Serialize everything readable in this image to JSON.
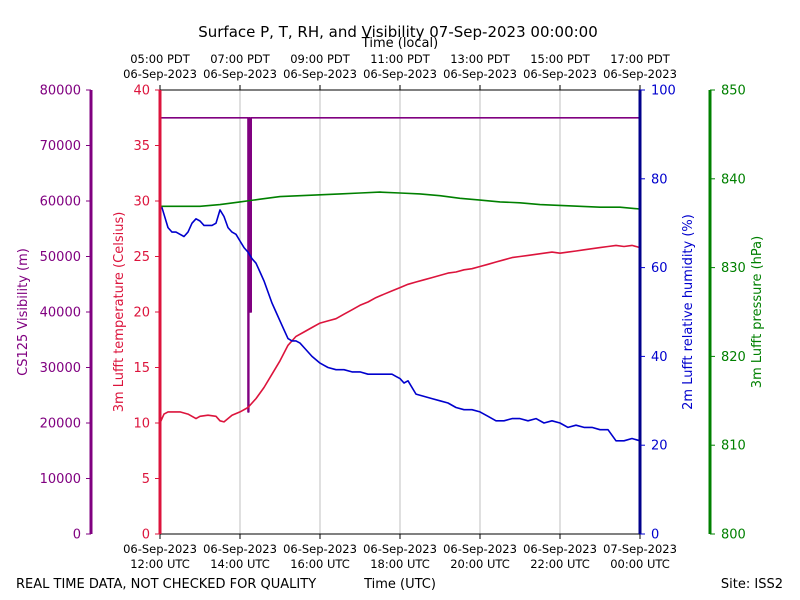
{
  "chart_data": {
    "type": "line",
    "title": "Surface P, T, RH, and Visibility 07-Sep-2023 00:00:00",
    "xlabel_bottom": "Time (UTC)",
    "xlabel_top": "Time (local)",
    "footer_left": "REAL TIME DATA, NOT CHECKED FOR QUALITY",
    "footer_right": "Site: ISS2",
    "xlim_utc_hours": [
      12,
      24
    ],
    "grid": "vertical",
    "x_ticks_bottom": [
      {
        "hour": 12,
        "line1": "06-Sep-2023",
        "line2": "12:00 UTC"
      },
      {
        "hour": 14,
        "line1": "06-Sep-2023",
        "line2": "14:00 UTC"
      },
      {
        "hour": 16,
        "line1": "06-Sep-2023",
        "line2": "16:00 UTC"
      },
      {
        "hour": 18,
        "line1": "06-Sep-2023",
        "line2": "18:00 UTC"
      },
      {
        "hour": 20,
        "line1": "06-Sep-2023",
        "line2": "20:00 UTC"
      },
      {
        "hour": 22,
        "line1": "06-Sep-2023",
        "line2": "22:00 UTC"
      },
      {
        "hour": 24,
        "line1": "07-Sep-2023",
        "line2": "00:00 UTC"
      }
    ],
    "x_ticks_top": [
      {
        "hour": 12,
        "line1": "05:00 PDT",
        "line2": "06-Sep-2023"
      },
      {
        "hour": 14,
        "line1": "07:00 PDT",
        "line2": "06-Sep-2023"
      },
      {
        "hour": 16,
        "line1": "09:00 PDT",
        "line2": "06-Sep-2023"
      },
      {
        "hour": 18,
        "line1": "11:00 PDT",
        "line2": "06-Sep-2023"
      },
      {
        "hour": 20,
        "line1": "13:00 PDT",
        "line2": "06-Sep-2023"
      },
      {
        "hour": 22,
        "line1": "15:00 PDT",
        "line2": "06-Sep-2023"
      },
      {
        "hour": 24,
        "line1": "17:00 PDT",
        "line2": "06-Sep-2023"
      }
    ],
    "axes": {
      "visibility": {
        "label": "CS125 Visibility (m)",
        "ylim": [
          0,
          80000
        ],
        "ticks": [
          0,
          10000,
          20000,
          30000,
          40000,
          50000,
          60000,
          70000,
          80000
        ],
        "color": "#800080"
      },
      "temperature": {
        "label": "3m Lufft temperature (Celsius)",
        "ylim": [
          0,
          40
        ],
        "ticks": [
          0,
          5,
          10,
          15,
          20,
          25,
          30,
          35,
          40
        ],
        "color": "#dc143c"
      },
      "humidity": {
        "label": "2m Lufft relative humidity (%)",
        "ylim": [
          0,
          100
        ],
        "ticks": [
          0,
          20,
          40,
          60,
          80,
          100
        ],
        "color": "#0000cd"
      },
      "pressure": {
        "label": "3m Lufft pressure (hPa)",
        "ylim": [
          800,
          850
        ],
        "ticks": [
          800,
          810,
          820,
          830,
          840,
          850
        ],
        "color": "#008000"
      }
    },
    "series": [
      {
        "axis": "visibility",
        "color": "#800080",
        "x": [
          12.0,
          14.2,
          14.2,
          14.22,
          14.22,
          14.25,
          14.25,
          14.28,
          14.28,
          14.32,
          14.32,
          24.0
        ],
        "y": [
          75000,
          75000,
          22000,
          22000,
          75000,
          75000,
          40000,
          40000,
          75000,
          75000,
          75000,
          75000
        ]
      },
      {
        "axis": "temperature",
        "color": "#dc143c",
        "x": [
          12.0,
          12.1,
          12.2,
          12.5,
          12.7,
          12.9,
          13.0,
          13.2,
          13.4,
          13.5,
          13.6,
          13.8,
          14.0,
          14.2,
          14.4,
          14.6,
          14.8,
          15.0,
          15.2,
          15.4,
          15.6,
          15.8,
          16.0,
          16.2,
          16.4,
          16.6,
          16.8,
          17.0,
          17.2,
          17.4,
          17.6,
          17.8,
          18.0,
          18.2,
          18.4,
          18.6,
          18.8,
          19.0,
          19.2,
          19.4,
          19.6,
          19.8,
          20.0,
          20.2,
          20.4,
          20.6,
          20.8,
          21.0,
          21.2,
          21.4,
          21.6,
          21.8,
          22.0,
          22.2,
          22.4,
          22.6,
          22.8,
          23.0,
          23.2,
          23.4,
          23.6,
          23.8,
          24.0
        ],
        "y": [
          10.0,
          10.8,
          11.0,
          11.0,
          10.8,
          10.4,
          10.6,
          10.7,
          10.6,
          10.2,
          10.1,
          10.7,
          11.0,
          11.4,
          12.2,
          13.2,
          14.4,
          15.6,
          17.0,
          17.8,
          18.2,
          18.6,
          19.0,
          19.2,
          19.4,
          19.8,
          20.2,
          20.6,
          20.9,
          21.3,
          21.6,
          21.9,
          22.2,
          22.5,
          22.7,
          22.9,
          23.1,
          23.3,
          23.5,
          23.6,
          23.8,
          23.9,
          24.1,
          24.3,
          24.5,
          24.7,
          24.9,
          25.0,
          25.1,
          25.2,
          25.3,
          25.4,
          25.3,
          25.4,
          25.5,
          25.6,
          25.7,
          25.8,
          25.9,
          26.0,
          25.9,
          26.0,
          25.8
        ]
      },
      {
        "axis": "humidity",
        "color": "#0000cd",
        "x": [
          12.0,
          12.05,
          12.1,
          12.2,
          12.3,
          12.4,
          12.5,
          12.6,
          12.7,
          12.8,
          12.9,
          13.0,
          13.1,
          13.2,
          13.3,
          13.4,
          13.5,
          13.6,
          13.7,
          13.8,
          13.9,
          14.0,
          14.1,
          14.2,
          14.3,
          14.4,
          14.5,
          14.6,
          14.7,
          14.8,
          14.9,
          15.0,
          15.1,
          15.2,
          15.3,
          15.4,
          15.5,
          15.6,
          15.8,
          16.0,
          16.1,
          16.2,
          16.4,
          16.6,
          16.8,
          17.0,
          17.2,
          17.4,
          17.6,
          17.8,
          17.9,
          18.0,
          18.1,
          18.2,
          18.4,
          18.6,
          18.8,
          19.0,
          19.2,
          19.4,
          19.6,
          19.8,
          20.0,
          20.2,
          20.4,
          20.6,
          20.8,
          21.0,
          21.2,
          21.4,
          21.6,
          21.8,
          22.0,
          22.2,
          22.4,
          22.6,
          22.8,
          23.0,
          23.2,
          23.4,
          23.6,
          23.8,
          24.0
        ],
        "y": [
          74.0,
          73.5,
          72.0,
          69.0,
          68.0,
          68.0,
          67.5,
          67.0,
          68.0,
          70.0,
          71.0,
          70.5,
          69.5,
          69.5,
          69.5,
          70.0,
          73.0,
          71.5,
          69.0,
          68.0,
          67.5,
          66.0,
          64.5,
          63.5,
          62.0,
          61.0,
          59.0,
          57.0,
          54.5,
          52.0,
          50.0,
          48.0,
          46.0,
          44.0,
          43.5,
          43.5,
          43.0,
          42.0,
          40.0,
          38.5,
          38.0,
          37.5,
          37.0,
          37.0,
          36.5,
          36.5,
          36.0,
          36.0,
          36.0,
          36.0,
          35.5,
          35.0,
          34.0,
          34.5,
          31.5,
          31.0,
          30.5,
          30.0,
          29.5,
          28.5,
          28.0,
          28.0,
          27.5,
          26.5,
          25.5,
          25.5,
          26.0,
          26.0,
          25.5,
          26.0,
          25.0,
          25.5,
          25.0,
          24.0,
          24.5,
          24.0,
          24.0,
          23.5,
          23.5,
          21.0,
          21.0,
          21.5,
          21.0
        ]
      },
      {
        "axis": "pressure",
        "color": "#008000",
        "x": [
          12.0,
          12.5,
          13.0,
          13.5,
          14.0,
          14.5,
          15.0,
          15.5,
          16.0,
          16.5,
          17.0,
          17.5,
          18.0,
          18.5,
          19.0,
          19.5,
          20.0,
          20.5,
          21.0,
          21.5,
          22.0,
          22.5,
          23.0,
          23.5,
          24.0
        ],
        "y": [
          836.9,
          836.9,
          836.9,
          837.1,
          837.4,
          837.7,
          838.0,
          838.1,
          838.2,
          838.3,
          838.4,
          838.5,
          838.4,
          838.3,
          838.1,
          837.8,
          837.6,
          837.4,
          837.3,
          837.1,
          837.0,
          836.9,
          836.8,
          836.8,
          836.6
        ]
      }
    ]
  }
}
